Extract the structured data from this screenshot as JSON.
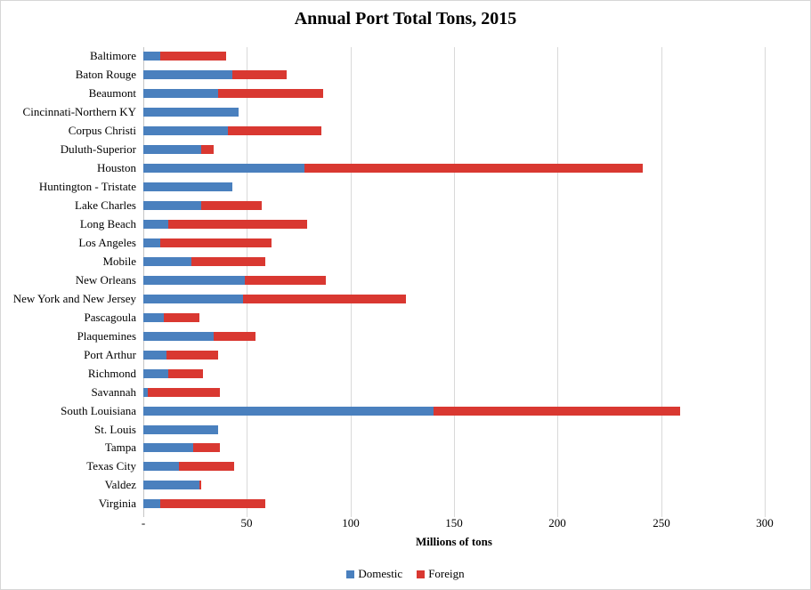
{
  "chart_data": {
    "type": "bar",
    "orientation": "horizontal-stacked",
    "title": "Annual Port Total Tons, 2015",
    "xlabel": "Millions of tons",
    "xlim": [
      0,
      300
    ],
    "xticks": [
      0,
      50,
      100,
      150,
      200,
      250,
      300
    ],
    "xtick_labels": [
      "-",
      "50",
      "100",
      "150",
      "200",
      "250",
      "300"
    ],
    "grid": true,
    "legend_position": "bottom-center",
    "gridline_color": "#d9d9d9",
    "categories": [
      "Baltimore",
      "Baton Rouge",
      "Beaumont",
      "Cincinnati-Northern KY",
      "Corpus Christi",
      "Duluth-Superior",
      "Houston",
      "Huntington - Tristate",
      "Lake Charles",
      "Long Beach",
      "Los Angeles",
      "Mobile",
      "New Orleans",
      "New York and New Jersey",
      "Pascagoula",
      "Plaquemines",
      "Port Arthur",
      "Richmond",
      "Savannah",
      "South Louisiana",
      "St. Louis",
      "Tampa",
      "Texas City",
      "Valdez",
      "Virginia"
    ],
    "series": [
      {
        "name": "Domestic",
        "color": "#4a80be",
        "values": [
          8,
          43,
          36,
          46,
          41,
          28,
          78,
          43,
          28,
          12,
          8,
          23,
          49,
          48,
          10,
          34,
          11,
          12,
          2,
          140,
          36,
          24,
          17,
          27,
          8
        ]
      },
      {
        "name": "Foreign",
        "color": "#d93831",
        "values": [
          32,
          26,
          51,
          0,
          45,
          6,
          163,
          0,
          29,
          67,
          54,
          36,
          39,
          79,
          17,
          20,
          25,
          17,
          35,
          119,
          0,
          13,
          27,
          1,
          51
        ]
      }
    ]
  }
}
